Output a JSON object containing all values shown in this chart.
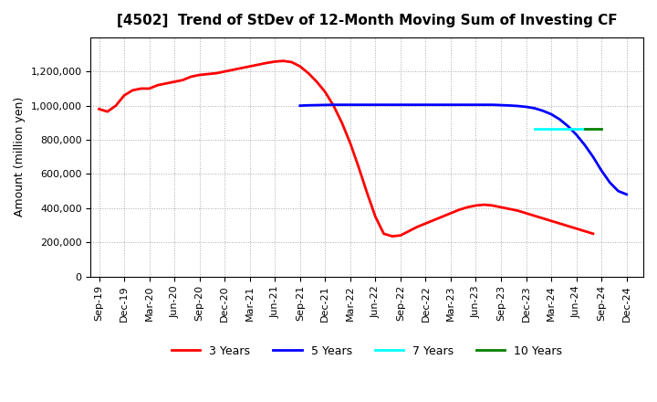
{
  "title": "[4502]  Trend of StDev of 12-Month Moving Sum of Investing CF",
  "ylabel": "Amount (million yen)",
  "background_color": "#ffffff",
  "grid_color": "#aaaaaa",
  "series": {
    "3years": {
      "color": "#ff0000",
      "label": "3 Years",
      "x": [
        0,
        1,
        2,
        3,
        4,
        5,
        6,
        7,
        8,
        9,
        10,
        11,
        12,
        13,
        14,
        15,
        16,
        17,
        18,
        19,
        20,
        21,
        22,
        23,
        24,
        25,
        26,
        27,
        28,
        29,
        30,
        31,
        32,
        33,
        34,
        35,
        36,
        37,
        38,
        39,
        40,
        41,
        42,
        43,
        44,
        45,
        46,
        47,
        48,
        49,
        50,
        51,
        52,
        53,
        54,
        55,
        56,
        57,
        58,
        59,
        60,
        61,
        62,
        63
      ],
      "y": [
        980000,
        965000,
        1000000,
        1060000,
        1090000,
        1100000,
        1100000,
        1120000,
        1130000,
        1140000,
        1150000,
        1170000,
        1180000,
        1185000,
        1190000,
        1200000,
        1210000,
        1220000,
        1230000,
        1240000,
        1250000,
        1258000,
        1262000,
        1255000,
        1230000,
        1190000,
        1140000,
        1080000,
        1000000,
        900000,
        780000,
        640000,
        490000,
        350000,
        250000,
        235000,
        240000,
        265000,
        290000,
        310000,
        330000,
        350000,
        370000,
        390000,
        405000,
        415000,
        420000,
        415000,
        405000,
        395000,
        385000,
        370000,
        355000,
        340000,
        325000,
        310000,
        295000,
        280000,
        265000,
        250000,
        null,
        null,
        null,
        null
      ]
    },
    "5years": {
      "color": "#0000ff",
      "label": "5 Years",
      "x_start": 24,
      "x": [
        24,
        25,
        26,
        27,
        28,
        29,
        30,
        31,
        32,
        33,
        34,
        35,
        36,
        37,
        38,
        39,
        40,
        41,
        42,
        43,
        44,
        45,
        46,
        47,
        48,
        49,
        50,
        51,
        52,
        53,
        54,
        55,
        56,
        57,
        58,
        59,
        60,
        61,
        62,
        63
      ],
      "y": [
        1000000,
        1002000,
        1003000,
        1004000,
        1005000,
        1005000,
        1005000,
        1005000,
        1005000,
        1005000,
        1005000,
        1005000,
        1005000,
        1005000,
        1005000,
        1005000,
        1005000,
        1005000,
        1005000,
        1005000,
        1005000,
        1005000,
        1005000,
        1005000,
        1003000,
        1001000,
        998000,
        993000,
        985000,
        970000,
        950000,
        920000,
        880000,
        830000,
        770000,
        700000,
        620000,
        550000,
        500000,
        480000
      ]
    },
    "7years": {
      "color": "#00ffff",
      "label": "7 Years",
      "x": [
        52,
        53,
        54,
        55,
        56,
        57,
        58
      ],
      "y": [
        862000,
        862000,
        862000,
        862000,
        862000,
        862000,
        862000
      ]
    },
    "10years": {
      "color": "#008000",
      "label": "10 Years",
      "x": [
        58,
        59,
        60
      ],
      "y": [
        862000,
        862000,
        862000
      ]
    }
  },
  "xtick_labels": [
    "Sep-19",
    "Dec-19",
    "Mar-20",
    "Jun-20",
    "Sep-20",
    "Dec-20",
    "Mar-21",
    "Jun-21",
    "Sep-21",
    "Dec-21",
    "Mar-22",
    "Jun-22",
    "Sep-22",
    "Dec-22",
    "Mar-23",
    "Jun-23",
    "Sep-23",
    "Dec-23",
    "Mar-24",
    "Jun-24",
    "Sep-24",
    "Dec-24"
  ],
  "xtick_positions": [
    0,
    3,
    6,
    9,
    12,
    15,
    18,
    21,
    24,
    27,
    30,
    33,
    36,
    39,
    42,
    45,
    48,
    51,
    54,
    57,
    60,
    63
  ],
  "ylim": [
    0,
    1400000
  ],
  "ytick_values": [
    0,
    200000,
    400000,
    600000,
    800000,
    1000000,
    1200000
  ]
}
